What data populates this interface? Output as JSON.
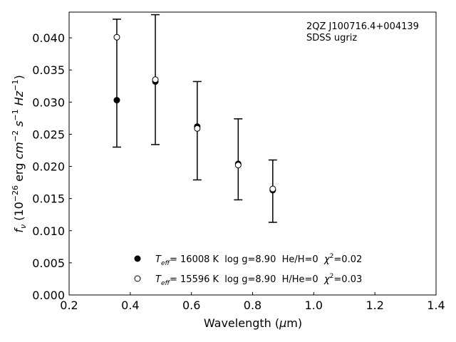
{
  "chart_data": {
    "type": "scatter",
    "title": "",
    "xlabel": "Wavelength (μm)",
    "xlabel_parts": [
      "Wavelength (",
      "μ",
      "m)"
    ],
    "ylabel_parts": [
      "f",
      "ν",
      " (10",
      "−26",
      " erg ",
      "cm",
      "−2",
      " s",
      "−1",
      " Hz",
      "−1",
      ")"
    ],
    "xlim": [
      0.2,
      1.4
    ],
    "ylim": [
      0.0,
      0.044
    ],
    "xticks": [
      0.2,
      0.4,
      0.6,
      0.8,
      1.0,
      1.2,
      1.4
    ],
    "xtick_labels": [
      "0.2",
      "0.4",
      "0.6",
      "0.8",
      "1.0",
      "1.2",
      "1.4"
    ],
    "yticks": [
      0.0,
      0.005,
      0.01,
      0.015,
      0.02,
      0.025,
      0.03,
      0.035,
      0.04
    ],
    "ytick_labels": [
      "0.000",
      "0.005",
      "0.010",
      "0.015",
      "0.020",
      "0.025",
      "0.030",
      "0.035",
      "0.040"
    ],
    "annotation": [
      "2QZ J100716.4+004139",
      "SDSS ugriz"
    ],
    "legend_position": "lower center",
    "grid": false,
    "observed": {
      "x": [
        0.356,
        0.482,
        0.619,
        0.753,
        0.866
      ],
      "low": [
        0.023,
        0.0234,
        0.0179,
        0.0148,
        0.0113
      ],
      "high": [
        0.0429,
        0.0436,
        0.0332,
        0.0274,
        0.021
      ]
    },
    "series": [
      {
        "name": "T_eff= 16008 K  log g=8.90  He/H=0  χ²=0.02",
        "legend": {
          "T": "T",
          "sub": "eff",
          "mid": "= 16008 K  log g=8.90  He/H=0  ",
          "chi": "χ",
          "sup": "2",
          "end": "=0.02"
        },
        "marker": "filled",
        "x": [
          0.356,
          0.482,
          0.619,
          0.753,
          0.866
        ],
        "y": [
          0.0303,
          0.0332,
          0.0262,
          0.0204,
          0.0163
        ]
      },
      {
        "name": "T_eff= 15596 K  log g=8.90  H/He=0  χ²=0.03",
        "legend": {
          "T": "T",
          "sub": "eff",
          "mid": "= 15596 K  log g=8.90  H/He=0  ",
          "chi": "χ",
          "sup": "2",
          "end": "=0.03"
        },
        "marker": "open",
        "x": [
          0.356,
          0.482,
          0.619,
          0.753,
          0.866
        ],
        "y": [
          0.0401,
          0.0335,
          0.0259,
          0.0202,
          0.0165
        ]
      }
    ]
  }
}
